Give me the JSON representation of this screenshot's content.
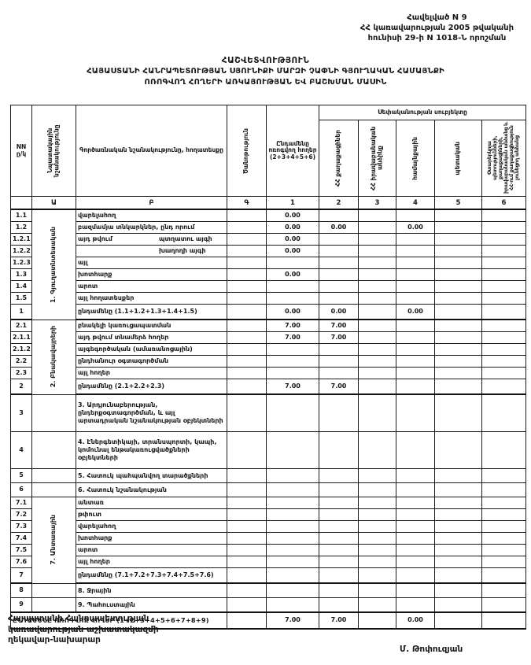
{
  "appendix": {
    "line1": "Հավելված N 9",
    "line2": "ՀՀ կառավարության 2005 թվականի",
    "line3": "հունիսի 29-ի N 1018-Ն որոշման"
  },
  "title": {
    "line1": "ՀԱՇՎԵՏՎՈՒԹՅՈՒՆ",
    "line2": "ՀԱՅԱՍՏԱՆԻ ՀԱՆՐԱՊԵՏՈՒԹՅԱՆ ՍՅՈՒՆԻՔԻ ՄԱՐԶԻ ՉԱՓՆԻ ԳՅՈՒՂԱԿԱՆ ՀԱՄԱՅՆՔԻ",
    "line3": "ՈՌՈԳՎՈՂ ՀՈՂԵՐԻ ԱՌԿԱՅՈՒԹՅԱՆ ԵՎ ԲԱՇԽՄԱՆ ՄԱՍԻՆ"
  },
  "table": {
    "headers": {
      "nn": "NN ը/կ",
      "purpose": "Նպատակային նշանակությունը",
      "land_type": "Գործառնական նշանակությունը, հողատեսքը",
      "note": "Ծանոթություն",
      "total_irrigated": "Ընդամենը ոռոգվող հողեր (2+3+4+5+6)",
      "ownership": "Սեփականության սուբյեկտը",
      "owners": [
        "ՀՀ քաղաքացիներ",
        "ՀՀ իրավաբանական անձինք",
        "համայնքային",
        "պետական",
        "Օտարերկրյա պետությունների, քաղաքացիների, իրավաբանական անձանց և ՀՀ-ում քաղաքացիություն չունեցող անձանց"
      ]
    },
    "index_row": [
      "",
      "Ա",
      "Բ",
      "Գ",
      "1",
      "2",
      "3",
      "4",
      "5",
      "6"
    ],
    "rows": [
      {
        "num": "1.1",
        "kind": "normal",
        "group_label": "1. Գյուղատնտեսական",
        "group_span": 9,
        "label": "վարելահող",
        "c1": "0.00",
        "c2": "",
        "c3": "",
        "c4": "",
        "c5": "",
        "c6": ""
      },
      {
        "num": "1.2",
        "kind": "normal",
        "label": "բազմամյա տնկարկներ, ընդ որում",
        "c1": "0.00",
        "c2": "0.00",
        "c3": "",
        "c4": "0.00",
        "c5": "",
        "c6": ""
      },
      {
        "num": "1.2.1",
        "kind": "normal",
        "label": "այդ թվում",
        "label2": "պտղատու այգի",
        "c1": "0.00",
        "c2": "",
        "c3": "",
        "c4": "",
        "c5": "",
        "c6": ""
      },
      {
        "num": "1.2.2",
        "kind": "normal",
        "label": "",
        "label2": "խաղողի այգի",
        "c1": "0.00",
        "c2": "",
        "c3": "",
        "c4": "",
        "c5": "",
        "c6": ""
      },
      {
        "num": "1.2.3",
        "kind": "normal",
        "label": "այլ",
        "c1": "",
        "c2": "",
        "c3": "",
        "c4": "",
        "c5": "",
        "c6": ""
      },
      {
        "num": "1.3",
        "kind": "normal",
        "label": "խոտհարք",
        "c1": "0.00",
        "c2": "",
        "c3": "",
        "c4": "",
        "c5": "",
        "c6": ""
      },
      {
        "num": "1.4",
        "kind": "normal",
        "label": "արոտ",
        "c1": "",
        "c2": "",
        "c3": "",
        "c4": "",
        "c5": "",
        "c6": ""
      },
      {
        "num": "1.5",
        "kind": "normal",
        "label": "այլ հողատեսքեր",
        "c1": "",
        "c2": "",
        "c3": "",
        "c4": "",
        "c5": "",
        "c6": ""
      },
      {
        "num": "1",
        "kind": "total",
        "label": "ընդամենը (1.1+1.2+1.3+1.4+1.5)",
        "c1": "0.00",
        "c2": "0.00",
        "c3": "",
        "c4": "0.00",
        "c5": "",
        "c6": ""
      },
      {
        "num": "2.1",
        "kind": "normal",
        "group_label": "2. Բնակավայրերի",
        "group_span": 6,
        "label": "բնակելի կառուցապատման",
        "c1": "7.00",
        "c2": "7.00",
        "c3": "",
        "c4": "",
        "c5": "",
        "c6": ""
      },
      {
        "num": "2.1.1",
        "kind": "normal",
        "label": "այդ թվում տնամերձ հողեր",
        "c1": "7.00",
        "c2": "7.00",
        "c3": "",
        "c4": "",
        "c5": "",
        "c6": ""
      },
      {
        "num": "2.1.2",
        "kind": "normal",
        "label": "այգեգործական (ամառանոցային)",
        "c1": "",
        "c2": "",
        "c3": "",
        "c4": "",
        "c5": "",
        "c6": ""
      },
      {
        "num": "2.2",
        "kind": "normal",
        "label": "ընդհանուր օգտագործման",
        "c1": "",
        "c2": "",
        "c3": "",
        "c4": "",
        "c5": "",
        "c6": ""
      },
      {
        "num": "2.3",
        "kind": "normal",
        "label": "այլ հողեր",
        "c1": "",
        "c2": "",
        "c3": "",
        "c4": "",
        "c5": "",
        "c6": ""
      },
      {
        "num": "2",
        "kind": "total",
        "label": "ընդամենը (2.1+2.2+2.3)",
        "c1": "7.00",
        "c2": "7.00",
        "c3": "",
        "c4": "",
        "c5": "",
        "c6": ""
      },
      {
        "num": "3",
        "kind": "section",
        "tall": true,
        "label": "3. Արդյունաբերության, ընդերքօգտագործման, և այլ արտադրական նշանակության օբյեկտների",
        "c1": "",
        "c2": "",
        "c3": "",
        "c4": "",
        "c5": "",
        "c6": ""
      },
      {
        "num": "4",
        "kind": "section",
        "tall": true,
        "label": "4. Էներգետիկայի, տրանսպորտի, կապի, կոմունալ ենթակառուցվածքների օբյեկտների",
        "c1": "",
        "c2": "",
        "c3": "",
        "c4": "",
        "c5": "",
        "c6": ""
      },
      {
        "num": "5",
        "kind": "section",
        "label": "5. Հատուկ պահպանվող տարածքների",
        "c1": "",
        "c2": "",
        "c3": "",
        "c4": "",
        "c5": "",
        "c6": ""
      },
      {
        "num": "6",
        "kind": "section",
        "label": "6. Հատուկ նշանակության",
        "c1": "",
        "c2": "",
        "c3": "",
        "c4": "",
        "c5": "",
        "c6": ""
      },
      {
        "num": "7.1",
        "kind": "normal",
        "group_label": "7. Անտառային",
        "group_span": 7,
        "label": "անտառ",
        "c1": "",
        "c2": "",
        "c3": "",
        "c4": "",
        "c5": "",
        "c6": ""
      },
      {
        "num": "7.2",
        "kind": "normal",
        "label": "թփուտ",
        "c1": "",
        "c2": "",
        "c3": "",
        "c4": "",
        "c5": "",
        "c6": ""
      },
      {
        "num": "7.3",
        "kind": "normal",
        "label": "վարելահող",
        "c1": "",
        "c2": "",
        "c3": "",
        "c4": "",
        "c5": "",
        "c6": ""
      },
      {
        "num": "7.4",
        "kind": "normal",
        "label": "խոտհարք",
        "c1": "",
        "c2": "",
        "c3": "",
        "c4": "",
        "c5": "",
        "c6": ""
      },
      {
        "num": "7.5",
        "kind": "normal",
        "label": "արոտ",
        "c1": "",
        "c2": "",
        "c3": "",
        "c4": "",
        "c5": "",
        "c6": ""
      },
      {
        "num": "7.6",
        "kind": "normal",
        "label": "այլ հողեր",
        "c1": "",
        "c2": "",
        "c3": "",
        "c4": "",
        "c5": "",
        "c6": ""
      },
      {
        "num": "7",
        "kind": "total",
        "label": "ընդամենը (7.1+7.2+7.3+7.4+7.5+7.6)",
        "c1": "",
        "c2": "",
        "c3": "",
        "c4": "",
        "c5": "",
        "c6": ""
      },
      {
        "num": "8",
        "kind": "section",
        "label": "8. Ջրային",
        "c1": "",
        "c2": "",
        "c3": "",
        "c4": "",
        "c5": "",
        "c6": ""
      },
      {
        "num": "9",
        "kind": "section",
        "label": "9. Պահուստային",
        "c1": "",
        "c2": "",
        "c3": "",
        "c4": "",
        "c5": "",
        "c6": ""
      },
      {
        "num": "",
        "kind": "grand",
        "label": "ԸՆԴԱՄԵՆԸ ՈՌՈԳՎՈՂ ՀՈՂԵՐ (1+2+3+4+5+6+7+8+9)",
        "c1": "7.00",
        "c2": "7.00",
        "c3": "",
        "c4": "0.00",
        "c5": "",
        "c6": ""
      }
    ]
  },
  "footer": {
    "official_line1": "Հայաստանի Հանրապետության",
    "official_line2": "կառավարության աշխատակազմի",
    "official_line3": "ղեկավար-նախարար",
    "signature": "Մ. Թոփուզյան"
  }
}
